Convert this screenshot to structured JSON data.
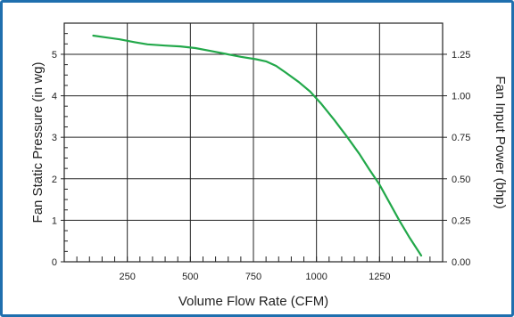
{
  "chart_data": {
    "type": "line",
    "title": "",
    "xlabel": "Volume Flow Rate (CFM)",
    "ylabel": "Fan Static Pressure (in wg)",
    "y2label": "Fan Input Power (bhp)",
    "xlim": [
      0,
      1500
    ],
    "ylim": [
      0,
      5.75
    ],
    "y2lim": [
      0,
      1.4375
    ],
    "x_ticks": [
      "250",
      "500",
      "750",
      "1000",
      "1250"
    ],
    "y_ticks": [
      "0",
      "1",
      "2",
      "3",
      "4",
      "5"
    ],
    "y2_ticks": [
      "0.00",
      "0.25",
      "0.50",
      "0.75",
      "1.00",
      "1.25"
    ],
    "grid": true,
    "series": [
      {
        "color": "#22a84a",
        "points": [
          [
            115,
            5.45
          ],
          [
            160,
            5.41
          ],
          [
            220,
            5.36
          ],
          [
            280,
            5.29
          ],
          [
            330,
            5.24
          ],
          [
            400,
            5.21
          ],
          [
            460,
            5.19
          ],
          [
            520,
            5.15
          ],
          [
            580,
            5.08
          ],
          [
            640,
            5.01
          ],
          [
            700,
            4.94
          ],
          [
            760,
            4.88
          ],
          [
            800,
            4.83
          ],
          [
            840,
            4.72
          ],
          [
            880,
            4.55
          ],
          [
            930,
            4.33
          ],
          [
            975,
            4.1
          ],
          [
            1020,
            3.8
          ],
          [
            1070,
            3.42
          ],
          [
            1120,
            3.02
          ],
          [
            1170,
            2.6
          ],
          [
            1210,
            2.22
          ],
          [
            1250,
            1.86
          ],
          [
            1290,
            1.42
          ],
          [
            1330,
            0.98
          ],
          [
            1370,
            0.57
          ],
          [
            1415,
            0.15
          ]
        ]
      }
    ]
  }
}
